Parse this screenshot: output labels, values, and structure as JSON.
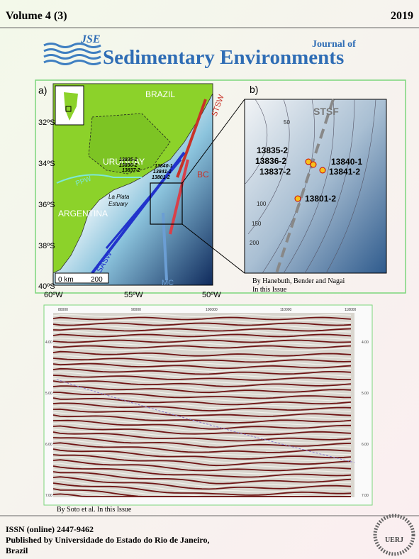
{
  "header": {
    "volume": "Volume 4 (3)",
    "year": "2019"
  },
  "logo": {
    "abbreviation": "JSE",
    "journal_of": "Journal of",
    "journal_name": "Sedimentary Environments"
  },
  "figure_a": {
    "panel_label": "a)",
    "countries": [
      "BRAZIL",
      "URUGUAY",
      "ARGENTINA"
    ],
    "estuary": [
      "La Plata",
      "Estuary"
    ],
    "currents": [
      "STSW",
      "PPW",
      "BC",
      "SASW",
      "MC"
    ],
    "samples": [
      "13835-2",
      "13836-2",
      "13837-2",
      "13840-1",
      "13841-2",
      "13801-2"
    ],
    "latitudes": [
      "32ºS",
      "34ºS",
      "36ºS",
      "38ºS",
      "40ºS"
    ],
    "longitudes": [
      "60ºW",
      "55ºW",
      "50ºW"
    ],
    "scale": [
      "0 km",
      "200"
    ]
  },
  "figure_b": {
    "panel_label": "b)",
    "front": "STSF",
    "contours": [
      "50",
      "100",
      "150",
      "200"
    ],
    "samples_left": [
      "13835-2",
      "13836-2",
      "13837-2"
    ],
    "samples_right": [
      "13840-1",
      "13841-2"
    ],
    "sample_south": "13801-2"
  },
  "credit_1": [
    "By Hanebuth, Bender and Nagai",
    "In this Issue"
  ],
  "seismic": {
    "x_labels": [
      "80000",
      "90000",
      "100000",
      "110000",
      "118000"
    ],
    "y_labels": [
      "4.00",
      "5.00",
      "6.00",
      "7.00"
    ]
  },
  "credit_2": "By Soto et al. In this Issue",
  "footer": {
    "issn": "ISSN (online) 2447-9462",
    "publisher": "Published by Universidade do Estado do Rio de Janeiro,",
    "country": "Brazil",
    "seal": "UERJ"
  }
}
